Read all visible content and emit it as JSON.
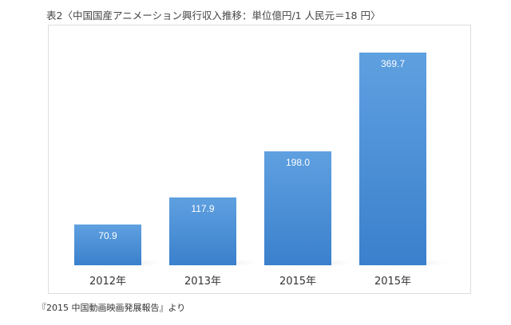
{
  "title": "表2〈中国国産アニメーション興行収入推移：単位億円/1 人民元＝18 円〉",
  "source_note": "『2015 中国動画映画発展報告』より",
  "chart_data": {
    "type": "bar",
    "categories": [
      "2012年",
      "2013年",
      "2015年",
      "2015年"
    ],
    "values": [
      70.9,
      117.9,
      198.0,
      369.7
    ],
    "data_labels": [
      "70.9",
      "117.9",
      "198.0",
      "369.7"
    ],
    "title": "表2〈中国国産アニメーション興行収入推移：単位億円/1 人民元＝18 円〉",
    "xlabel": "",
    "ylabel": "",
    "ylim": [
      0,
      370
    ],
    "grid": false,
    "legend": "none",
    "bar_color": "#4a90d9"
  }
}
